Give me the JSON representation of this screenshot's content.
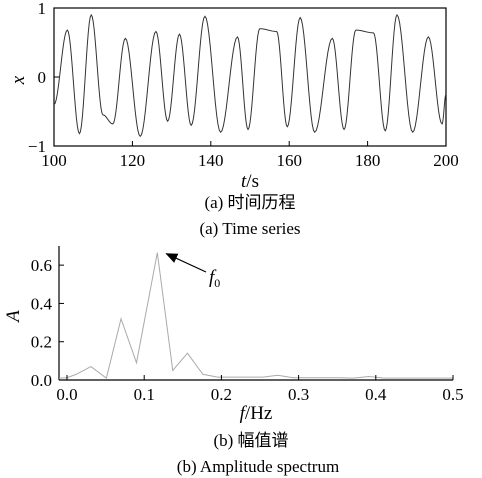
{
  "chart_data": [
    {
      "type": "line",
      "xlabel": "t",
      "xunit": "/s",
      "ylabel": "x",
      "xlim": [
        100,
        200
      ],
      "ylim": [
        -1,
        1
      ],
      "xticks": [
        "100",
        "120",
        "140",
        "160",
        "180",
        "200"
      ],
      "yticks": [
        "−1",
        "0",
        "1"
      ],
      "grid": false,
      "caption_cn": "(a) 时间历程",
      "caption_en": "(a) Time series",
      "series": [
        {
          "peaks": [
            {
              "t": 103.4,
              "x": 0.68
            },
            {
              "t": 109.5,
              "x": 0.9
            },
            {
              "t": 118.2,
              "x": 0.56
            },
            {
              "t": 126.0,
              "x": 0.66
            },
            {
              "t": 132.0,
              "x": 0.62
            },
            {
              "t": 138.5,
              "x": 0.88
            },
            {
              "t": 146.8,
              "x": 0.58
            },
            {
              "t": 152.5,
              "x": 0.7
            },
            {
              "t": 156.8,
              "x": 0.66
            },
            {
              "t": 162.8,
              "x": 0.86
            },
            {
              "t": 171.0,
              "x": 0.56
            },
            {
              "t": 177.0,
              "x": 0.68
            },
            {
              "t": 181.5,
              "x": 0.64
            },
            {
              "t": 187.5,
              "x": 0.9
            },
            {
              "t": 195.5,
              "x": 0.58
            }
          ],
          "troughs": [
            {
              "t": 100.0,
              "x": -0.4
            },
            {
              "t": 106.5,
              "x": -0.82
            },
            {
              "t": 112.5,
              "x": -0.55
            },
            {
              "t": 115.0,
              "x": -0.68
            },
            {
              "t": 122.0,
              "x": -0.86
            },
            {
              "t": 129.0,
              "x": -0.64
            },
            {
              "t": 135.0,
              "x": -0.7
            },
            {
              "t": 142.5,
              "x": -0.8
            },
            {
              "t": 149.5,
              "x": -0.76
            },
            {
              "t": 159.5,
              "x": -0.72
            },
            {
              "t": 166.5,
              "x": -0.8
            },
            {
              "t": 174.0,
              "x": -0.76
            },
            {
              "t": 184.5,
              "x": -0.78
            },
            {
              "t": 191.5,
              "x": -0.8
            },
            {
              "t": 199.0,
              "x": -0.68
            }
          ],
          "end": {
            "t": 200.0,
            "x": -0.25
          }
        }
      ]
    },
    {
      "type": "line",
      "xlabel": "f",
      "xunit": "/Hz",
      "ylabel": "A",
      "xlim": [
        -0.02,
        0.5
      ],
      "ylim": [
        0,
        0.7
      ],
      "xticks": [
        "0.0",
        "0.1",
        "0.2",
        "0.3",
        "0.4",
        "0.5"
      ],
      "yticks": [
        "0.0",
        "0.2",
        "0.4",
        "0.6"
      ],
      "grid": false,
      "annotation": {
        "text": "f",
        "subscript": "0",
        "x": 0.117,
        "y": 0.665
      },
      "caption_cn": "(b)  幅值谱",
      "caption_en": "(b)  Amplitude spectrum",
      "series": [
        {
          "x": [
            -0.02,
            0.0,
            0.012,
            0.031,
            0.051,
            0.07,
            0.09,
            0.117,
            0.137,
            0.156,
            0.176,
            0.195,
            0.215,
            0.234,
            0.254,
            0.273,
            0.293,
            0.313,
            0.332,
            0.352,
            0.371,
            0.391,
            0.41,
            0.43,
            0.449,
            0.469,
            0.488,
            0.5
          ],
          "y": [
            0.01,
            0.012,
            0.03,
            0.07,
            0.01,
            0.32,
            0.09,
            0.665,
            0.05,
            0.14,
            0.03,
            0.015,
            0.015,
            0.015,
            0.015,
            0.025,
            0.012,
            0.012,
            0.012,
            0.012,
            0.01,
            0.018,
            0.01,
            0.01,
            0.01,
            0.01,
            0.01,
            0.01
          ]
        }
      ]
    }
  ]
}
